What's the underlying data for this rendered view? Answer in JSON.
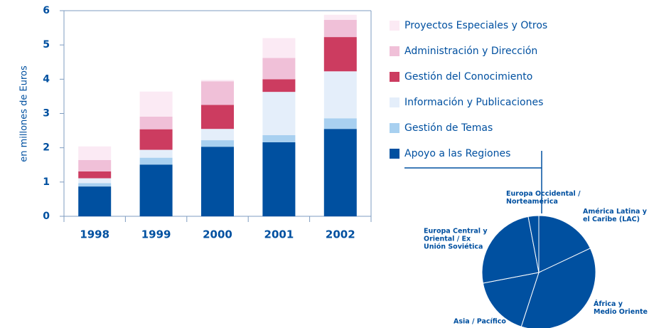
{
  "chart_data": [
    {
      "type": "bar",
      "y_label": "en millones de Euros",
      "categories": [
        "1998",
        "1999",
        "2000",
        "2001",
        "2002"
      ],
      "series": [
        {
          "name": "Apoyo a las Regiones",
          "color": "#0050a0",
          "values": [
            0.87,
            1.51,
            2.03,
            2.16,
            2.55
          ]
        },
        {
          "name": "Gestión de Temas",
          "color": "#a8d0f0",
          "values": [
            0.1,
            0.2,
            0.19,
            0.21,
            0.31
          ]
        },
        {
          "name": "Información y Publicaciones",
          "color": "#e4eefa",
          "values": [
            0.14,
            0.23,
            0.33,
            1.26,
            1.37
          ]
        },
        {
          "name": "Gestión del Conocimiento",
          "color": "#cc3c60",
          "values": [
            0.2,
            0.6,
            0.7,
            0.37,
            1.0
          ]
        },
        {
          "name": "Administración y Dirección",
          "color": "#f0c0d8",
          "values": [
            0.33,
            0.37,
            0.69,
            0.62,
            0.5
          ]
        },
        {
          "name": "Proyectos Especiales y Otros",
          "color": "#fbeaf4",
          "values": [
            0.4,
            0.73,
            0.04,
            0.58,
            0.15
          ]
        }
      ],
      "ylim": [
        0,
        6
      ],
      "yticks": [
        0,
        1,
        2,
        3,
        4,
        5,
        6
      ],
      "stacked": true
    },
    {
      "type": "pie",
      "color": "#0050a0",
      "labels": [
        [
          "América Latina y",
          "el Caribe (LAC)"
        ],
        [
          "África y",
          "Medio Oriente"
        ],
        [
          "Asia / Pacífico"
        ],
        [
          "Europa Central y",
          "Oriental / Ex",
          "Unión Soviética"
        ],
        [
          "Europa Occidental /",
          "Norteamérica"
        ]
      ],
      "values": [
        18,
        37,
        17,
        25,
        3
      ]
    }
  ]
}
